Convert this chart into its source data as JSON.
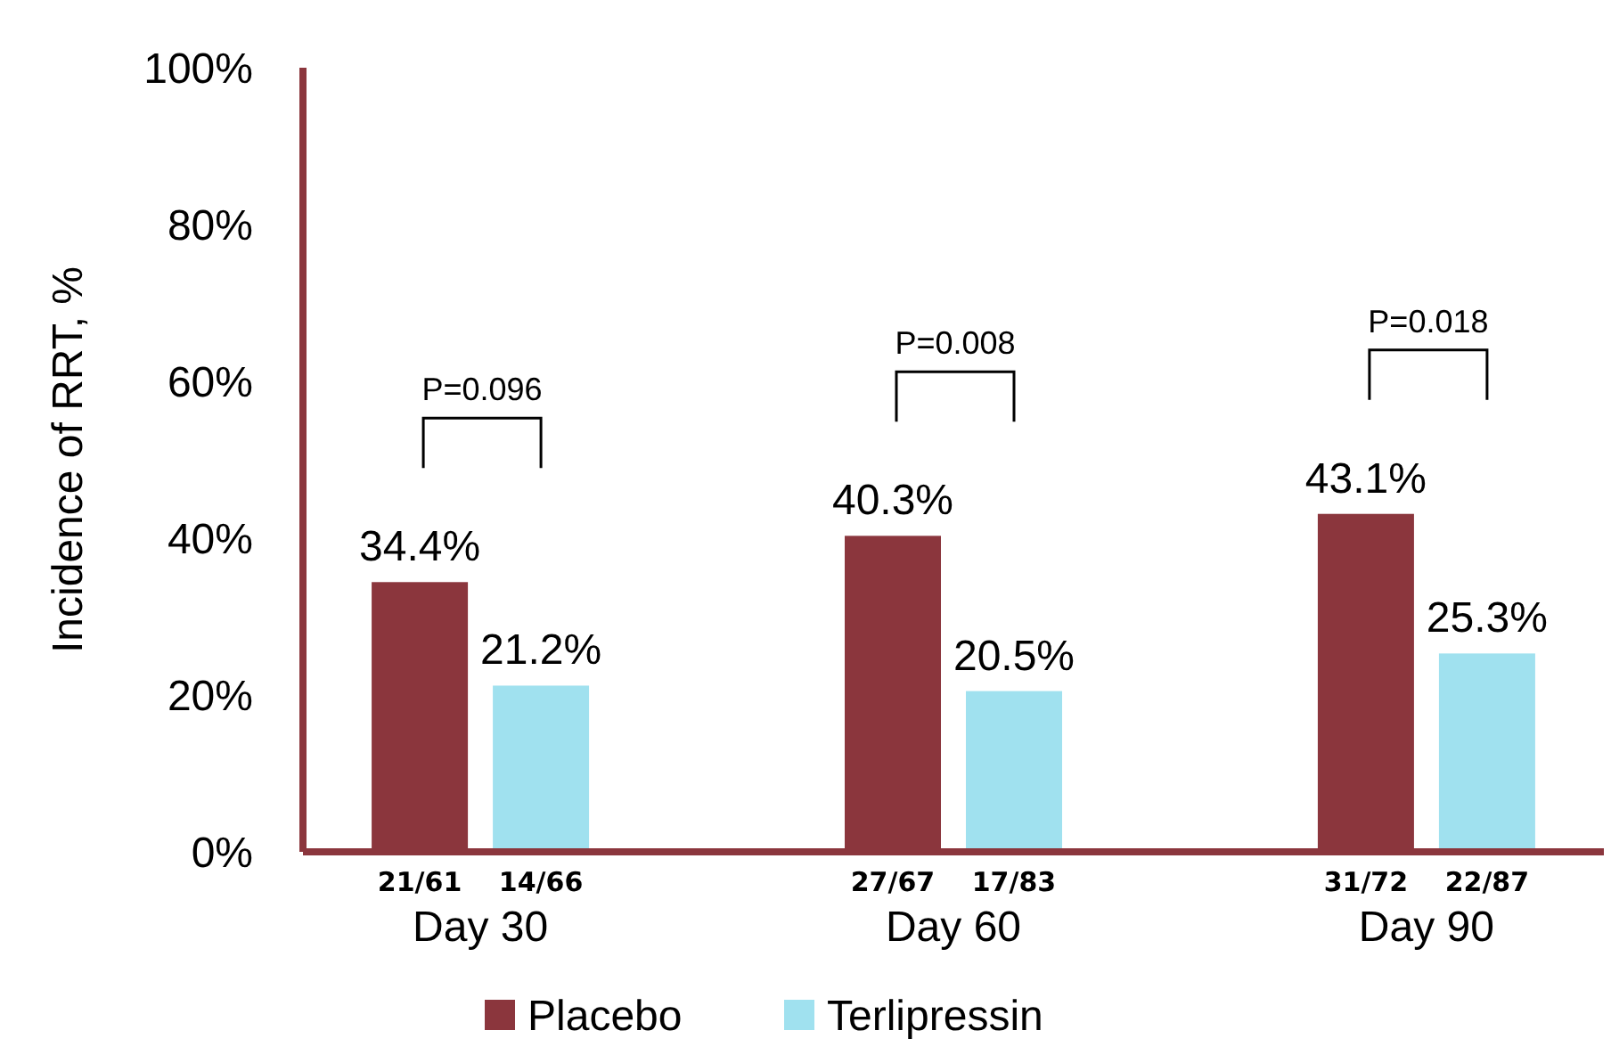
{
  "chart_data": {
    "type": "bar",
    "ylabel": "Incidence of RRT, %",
    "categories": [
      "Day 30",
      "Day 60",
      "Day 90"
    ],
    "series": [
      {
        "name": "Placebo",
        "color": "#8b363d",
        "values": [
          34.4,
          40.3,
          43.1
        ],
        "value_labels": [
          "34.4%",
          "40.3%",
          "43.1%"
        ]
      },
      {
        "name": "Terlipressin",
        "color": "#a0e1ef",
        "values": [
          21.2,
          20.5,
          25.3
        ],
        "value_labels": [
          "21.2%",
          "20.5%",
          "25.3%"
        ]
      }
    ],
    "ylim": [
      0,
      100
    ],
    "yticks": [
      {
        "value": 0,
        "label": "0%"
      },
      {
        "value": 20,
        "label": "20%"
      },
      {
        "value": 40,
        "label": "40%"
      },
      {
        "value": 60,
        "label": "60%"
      },
      {
        "value": 80,
        "label": "80%"
      },
      {
        "value": 100,
        "label": "100%"
      }
    ],
    "legend": "bottom",
    "grid": false,
    "annotations": [
      "P=0.096",
      "P=0.008",
      "P=0.018",
      "21/61",
      "14/66",
      "27/67",
      "17/83",
      "31/72",
      "22/87"
    ]
  }
}
